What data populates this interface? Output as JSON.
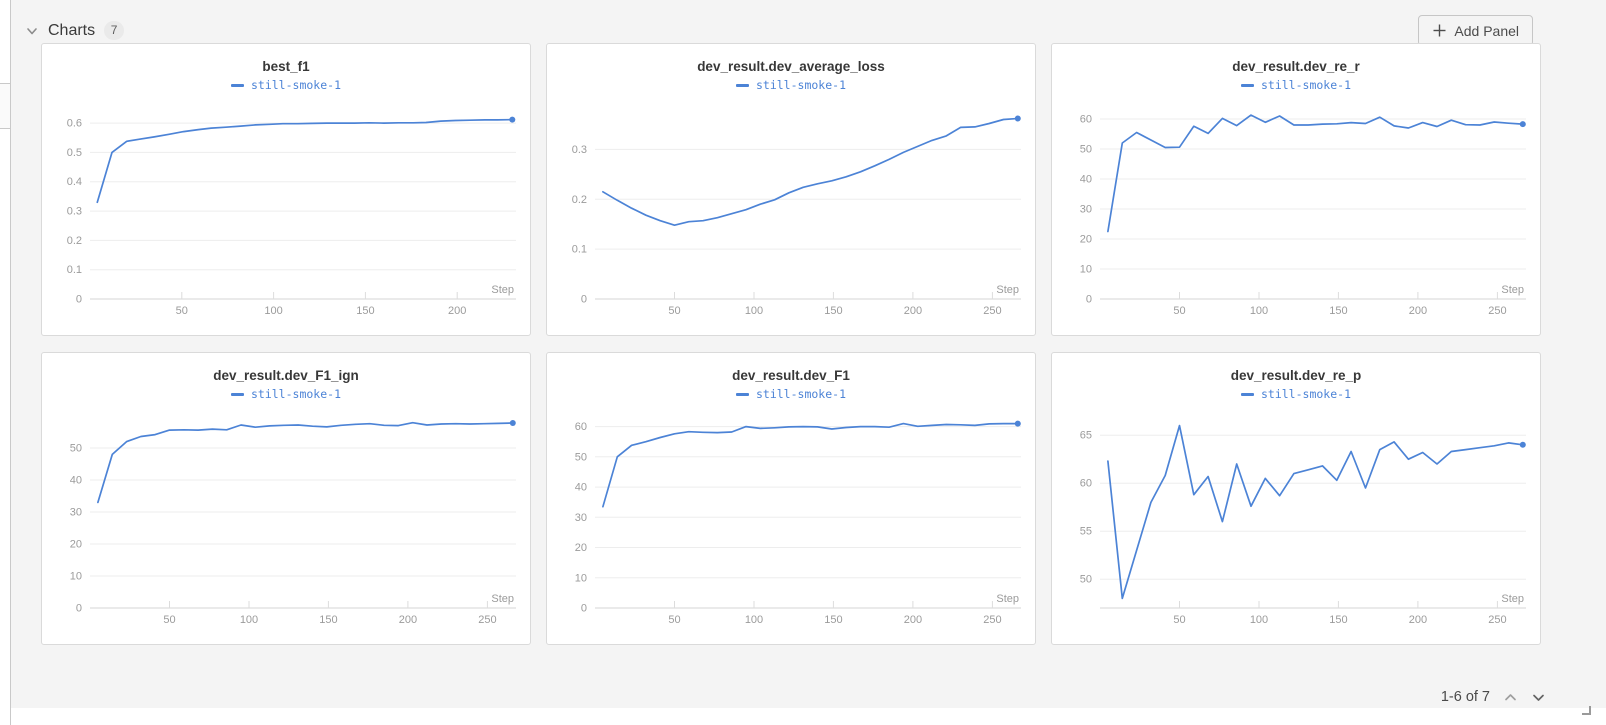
{
  "header": {
    "section_label": "Charts",
    "count_badge": "7",
    "add_panel_label": "Add Panel"
  },
  "pagination": {
    "label": "1-6 of 7"
  },
  "accent": {
    "line_color": "#4c83d6",
    "legend_color": "#4c83d6"
  },
  "chart_data": [
    {
      "type": "line",
      "title": "best_f1",
      "legend": "still-smoke-1",
      "xlabel": "Step",
      "x_range": [
        0,
        232
      ],
      "y_range": [
        0,
        0.655
      ],
      "x_ticks": [
        50,
        100,
        150,
        200
      ],
      "y_ticks": [
        0,
        0.1,
        0.2,
        0.3,
        0.4,
        0.5,
        0.6
      ],
      "grid": true,
      "legend_position": "top",
      "end_dot": true,
      "x": [
        4,
        12,
        20,
        27,
        35,
        43,
        51,
        59,
        66,
        74,
        82,
        90,
        98,
        105,
        113,
        121,
        129,
        137,
        144,
        152,
        160,
        168,
        176,
        183,
        191,
        199,
        207,
        215,
        222,
        230
      ],
      "y": [
        0.33,
        0.5,
        0.538,
        0.545,
        0.553,
        0.562,
        0.571,
        0.578,
        0.583,
        0.586,
        0.59,
        0.594,
        0.596,
        0.598,
        0.598,
        0.599,
        0.6,
        0.6,
        0.6,
        0.601,
        0.6,
        0.601,
        0.601,
        0.602,
        0.607,
        0.609,
        0.61,
        0.611,
        0.611,
        0.612
      ]
    },
    {
      "type": "line",
      "title": "dev_result.dev_average_loss",
      "legend": "still-smoke-1",
      "xlabel": "Step",
      "x_range": [
        0,
        268
      ],
      "y_range": [
        0,
        0.385
      ],
      "x_ticks": [
        50,
        100,
        150,
        200,
        250
      ],
      "y_ticks": [
        0,
        0.1,
        0.2,
        0.3
      ],
      "grid": true,
      "legend_position": "top",
      "end_dot": true,
      "x": [
        5,
        14,
        23,
        32,
        41,
        50,
        59,
        68,
        77,
        86,
        95,
        104,
        113,
        122,
        131,
        140,
        149,
        158,
        167,
        176,
        185,
        194,
        203,
        212,
        221,
        230,
        239,
        248,
        257,
        266
      ],
      "y": [
        0.215,
        0.198,
        0.182,
        0.168,
        0.157,
        0.148,
        0.155,
        0.157,
        0.163,
        0.171,
        0.179,
        0.19,
        0.199,
        0.213,
        0.224,
        0.231,
        0.237,
        0.245,
        0.255,
        0.267,
        0.28,
        0.294,
        0.306,
        0.318,
        0.327,
        0.344,
        0.345,
        0.352,
        0.36,
        0.362
      ]
    },
    {
      "type": "line",
      "title": "dev_result.dev_re_r",
      "legend": "still-smoke-1",
      "xlabel": "Step",
      "x_range": [
        0,
        268
      ],
      "y_range": [
        0,
        64
      ],
      "x_ticks": [
        50,
        100,
        150,
        200,
        250
      ],
      "y_ticks": [
        0,
        10,
        20,
        30,
        40,
        50,
        60
      ],
      "grid": true,
      "legend_position": "top",
      "end_dot": true,
      "x": [
        5,
        14,
        23,
        32,
        41,
        50,
        59,
        68,
        77,
        86,
        95,
        104,
        113,
        122,
        131,
        140,
        149,
        158,
        167,
        176,
        185,
        194,
        203,
        212,
        221,
        230,
        239,
        248,
        257,
        266
      ],
      "y": [
        22.5,
        52,
        55.5,
        53,
        50.5,
        50.6,
        57.6,
        55.2,
        60.2,
        57.8,
        61.3,
        58.9,
        61,
        58,
        58,
        58.3,
        58.4,
        58.8,
        58.5,
        60.6,
        57.7,
        57,
        58.8,
        57.5,
        59.6,
        58.1,
        58,
        59,
        58.6,
        58.3
      ]
    },
    {
      "type": "line",
      "title": "dev_result.dev_F1_ign",
      "legend": "still-smoke-1",
      "xlabel": "Step",
      "x_range": [
        0,
        268
      ],
      "y_range": [
        0,
        60
      ],
      "x_ticks": [
        50,
        100,
        150,
        200,
        250
      ],
      "y_ticks": [
        0,
        10,
        20,
        30,
        40,
        50
      ],
      "grid": true,
      "legend_position": "top",
      "end_dot": true,
      "x": [
        5,
        14,
        23,
        32,
        41,
        50,
        59,
        68,
        77,
        86,
        95,
        104,
        113,
        122,
        131,
        140,
        149,
        158,
        167,
        176,
        185,
        194,
        203,
        212,
        221,
        230,
        239,
        248,
        257,
        266
      ],
      "y": [
        33,
        48,
        52,
        53.6,
        54.2,
        55.6,
        55.7,
        55.6,
        55.9,
        55.7,
        57.2,
        56.5,
        56.9,
        57.1,
        57.2,
        56.8,
        56.6,
        57.1,
        57.4,
        57.6,
        57.1,
        57,
        57.9,
        57.2,
        57.5,
        57.6,
        57.5,
        57.6,
        57.7,
        57.8
      ]
    },
    {
      "type": "line",
      "title": "dev_result.dev_F1",
      "legend": "still-smoke-1",
      "xlabel": "Step",
      "x_range": [
        0,
        268
      ],
      "y_range": [
        0,
        63.5
      ],
      "x_ticks": [
        50,
        100,
        150,
        200,
        250
      ],
      "y_ticks": [
        0,
        10,
        20,
        30,
        40,
        50,
        60
      ],
      "grid": true,
      "legend_position": "top",
      "end_dot": true,
      "x": [
        5,
        14,
        23,
        32,
        41,
        50,
        59,
        68,
        77,
        86,
        95,
        104,
        113,
        122,
        131,
        140,
        149,
        158,
        167,
        176,
        185,
        194,
        203,
        212,
        221,
        230,
        239,
        248,
        257,
        266
      ],
      "y": [
        33.5,
        50,
        53.8,
        55,
        56.4,
        57.6,
        58.3,
        58.1,
        58,
        58.2,
        60,
        59.4,
        59.6,
        59.9,
        60,
        59.9,
        59.2,
        59.7,
        60,
        60,
        59.8,
        61,
        60.1,
        60.4,
        60.7,
        60.6,
        60.4,
        60.9,
        61,
        61
      ]
    },
    {
      "type": "line",
      "title": "dev_result.dev_re_p",
      "legend": "still-smoke-1",
      "xlabel": "Step",
      "x_range": [
        0,
        268
      ],
      "y_range": [
        47,
        67
      ],
      "x_ticks": [
        50,
        100,
        150,
        200,
        250
      ],
      "y_ticks": [
        50,
        55,
        60,
        65
      ],
      "grid": true,
      "legend_position": "top",
      "end_dot": true,
      "x": [
        5,
        14,
        23,
        32,
        41,
        50,
        59,
        68,
        77,
        86,
        95,
        104,
        113,
        122,
        131,
        140,
        149,
        158,
        167,
        176,
        185,
        194,
        203,
        212,
        221,
        230,
        239,
        248,
        257,
        266
      ],
      "y": [
        62.3,
        48,
        53,
        58,
        60.8,
        66,
        58.8,
        60.7,
        56,
        62,
        57.6,
        60.5,
        58.7,
        61,
        61.4,
        61.8,
        60.3,
        63.3,
        59.5,
        63.5,
        64.3,
        62.5,
        63.2,
        62,
        63.3,
        63.5,
        63.7,
        63.9,
        64.2,
        64
      ]
    }
  ]
}
